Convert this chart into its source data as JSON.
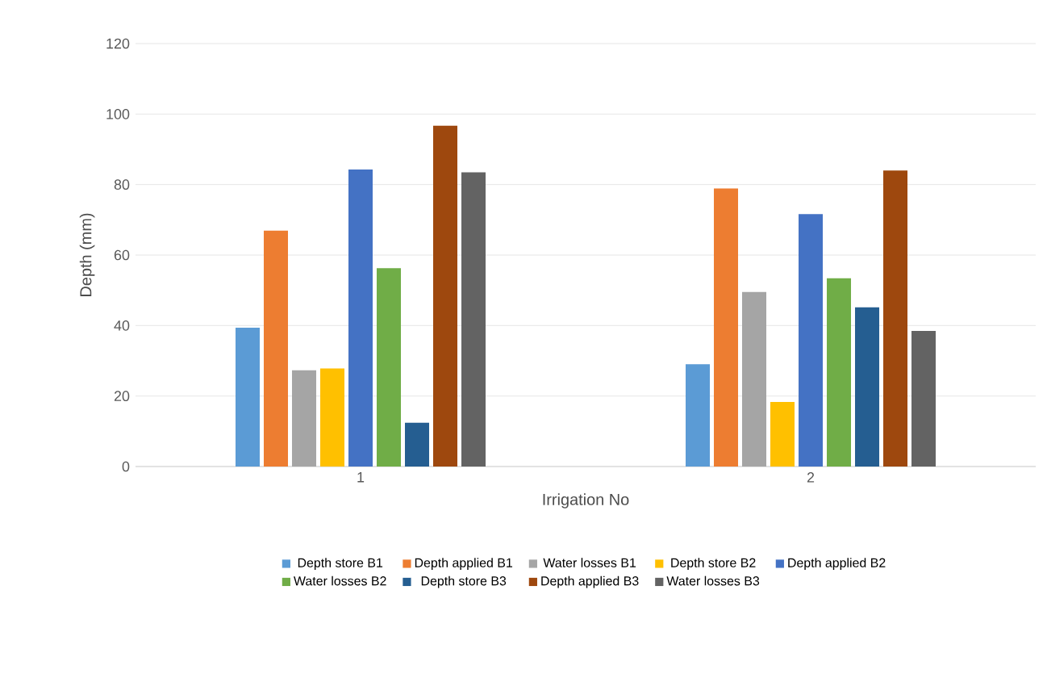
{
  "chart_data": {
    "type": "bar",
    "xlabel": "Irrigation No",
    "ylabel": "Depth (mm)",
    "categories": [
      "1",
      "2"
    ],
    "series": [
      {
        "name": "Depth store B1",
        "color": "#5b9bd5",
        "values": [
          39.4,
          29
        ]
      },
      {
        "name": "Depth applied B1",
        "color": "#ed7d31",
        "values": [
          66.9,
          78.9
        ]
      },
      {
        "name": "Water losses B1",
        "color": "#a5a5a5",
        "values": [
          27.3,
          49.5
        ]
      },
      {
        "name": "Depth store B2",
        "color": "#ffc000",
        "values": [
          27.8,
          18.3
        ]
      },
      {
        "name": "Depth applied B2",
        "color": "#4472c4",
        "values": [
          84.3,
          71.6
        ]
      },
      {
        "name": "Water losses B2",
        "color": "#70ad47",
        "values": [
          56.3,
          53.4
        ]
      },
      {
        "name": "Depth store B3",
        "color": "#255e91",
        "values": [
          12.4,
          45.2
        ]
      },
      {
        "name": "Depth applied B3",
        "color": "#9e480e",
        "values": [
          96.7,
          84
        ]
      },
      {
        "name": "Water losses B3",
        "color": "#636363",
        "values": [
          83.5,
          38.5
        ]
      }
    ],
    "ylim": [
      0,
      120
    ],
    "yticks": [
      0,
      20,
      40,
      60,
      80,
      100,
      120
    ],
    "grid": "y",
    "legend": "bottom"
  }
}
